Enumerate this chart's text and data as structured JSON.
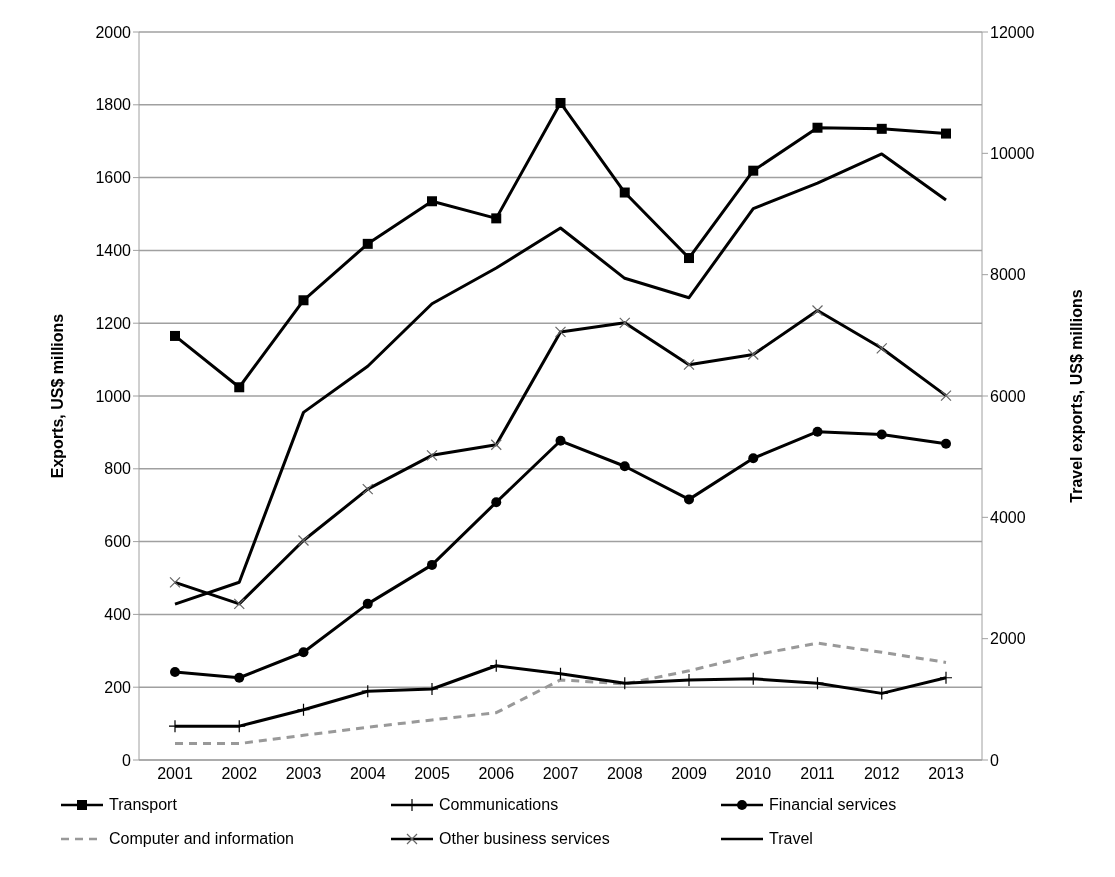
{
  "chart_data": {
    "type": "line",
    "categories": [
      "2001",
      "2002",
      "2003",
      "2004",
      "2005",
      "2006",
      "2007",
      "2008",
      "2009",
      "2010",
      "2011",
      "2012",
      "2013"
    ],
    "ylabel": "Exports, US$  millions",
    "y2label": "Travel exports, US$ millions",
    "ylim": [
      0,
      2000
    ],
    "yticks": [
      0,
      200,
      400,
      600,
      800,
      1000,
      1200,
      1400,
      1600,
      1800,
      2000
    ],
    "y2lim": [
      0,
      12000
    ],
    "y2ticks": [
      0,
      2000,
      4000,
      6000,
      8000,
      10000,
      12000
    ],
    "grid": "y",
    "legend": "bottom",
    "series": [
      {
        "name": "Transport",
        "color": "#000000",
        "marker": "square",
        "values": [
          1165,
          1024,
          1263,
          1418,
          1535,
          1488,
          1805,
          1559,
          1379,
          1619,
          1737,
          1734,
          1721
        ]
      },
      {
        "name": "Communications",
        "color": "#000000",
        "marker": "plus",
        "values": [
          93,
          93,
          138,
          189,
          195,
          259,
          237,
          211,
          220,
          223,
          211,
          183,
          226
        ]
      },
      {
        "name": "Financial services",
        "color": "#000000",
        "marker": "circle",
        "values": [
          242,
          226,
          296,
          429,
          536,
          708,
          877,
          807,
          716,
          829,
          902,
          894,
          869
        ]
      },
      {
        "name": "Computer and information",
        "color": "#999999",
        "marker": "none",
        "line_style": "dashed",
        "values": [
          45,
          45,
          68,
          90,
          110,
          130,
          220,
          209,
          245,
          288,
          321,
          296,
          268
        ]
      },
      {
        "name": "Other business services",
        "color": "#000000",
        "marker": "cross",
        "values": [
          488,
          429,
          603,
          744,
          837,
          866,
          1176,
          1201,
          1086,
          1114,
          1235,
          1131,
          1001
        ]
      },
      {
        "name": "Travel",
        "color": "#000000",
        "marker": "none",
        "axis": "y2",
        "values": [
          2570,
          2930,
          5730,
          6490,
          7520,
          8110,
          8770,
          7940,
          7620,
          9090,
          9510,
          9990,
          9230
        ]
      }
    ]
  }
}
